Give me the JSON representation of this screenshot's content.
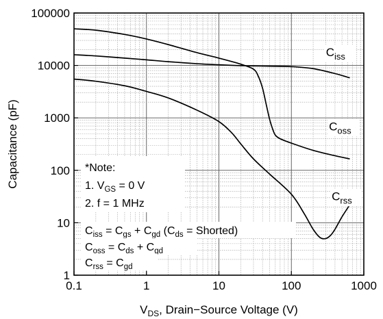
{
  "chart_data": {
    "type": "line",
    "xscale": "log",
    "yscale": "log",
    "xlim": [
      0.1,
      1000
    ],
    "ylim": [
      1,
      100000
    ],
    "grid": true,
    "ylabel": "Capacitance (pF)",
    "xlabel_parts": [
      "V",
      "DS",
      ", Drain−Source Voltage (V)"
    ],
    "x_ticks": [
      {
        "value": 0.1,
        "label": "0.1"
      },
      {
        "value": 1,
        "label": "1"
      },
      {
        "value": 10,
        "label": "10"
      },
      {
        "value": 100,
        "label": "100"
      },
      {
        "value": 1000,
        "label": "1000"
      }
    ],
    "y_ticks": [
      {
        "value": 1,
        "label": "1"
      },
      {
        "value": 10,
        "label": "10"
      },
      {
        "value": 100,
        "label": "100"
      },
      {
        "value": 1000,
        "label": "1000"
      },
      {
        "value": 10000,
        "label": "10000"
      },
      {
        "value": 100000,
        "label": "100000"
      }
    ],
    "series": [
      {
        "key": "ciss",
        "label_main": "C",
        "label_sub": "iss",
        "points": [
          [
            0.1,
            16000
          ],
          [
            0.2,
            15200
          ],
          [
            0.5,
            13800
          ],
          [
            1,
            12800
          ],
          [
            2,
            11800
          ],
          [
            5,
            10800
          ],
          [
            10,
            10300
          ],
          [
            20,
            9900
          ],
          [
            30,
            9800
          ],
          [
            50,
            9700
          ],
          [
            100,
            9500
          ],
          [
            200,
            8700
          ],
          [
            400,
            7000
          ],
          [
            640,
            5800
          ]
        ]
      },
      {
        "key": "coss",
        "label_main": "C",
        "label_sub": "oss",
        "points": [
          [
            0.1,
            50000
          ],
          [
            0.2,
            47000
          ],
          [
            0.5,
            39000
          ],
          [
            1,
            32000
          ],
          [
            2,
            25000
          ],
          [
            5,
            17500
          ],
          [
            10,
            13800
          ],
          [
            20,
            10600
          ],
          [
            30,
            8500
          ],
          [
            35,
            6200
          ],
          [
            40,
            3700
          ],
          [
            45,
            1800
          ],
          [
            50,
            950
          ],
          [
            55,
            620
          ],
          [
            60,
            470
          ],
          [
            70,
            400
          ],
          [
            100,
            330
          ],
          [
            200,
            240
          ],
          [
            400,
            190
          ],
          [
            640,
            165
          ]
        ]
      },
      {
        "key": "crss",
        "label_main": "C",
        "label_sub": "rss",
        "points": [
          [
            0.1,
            5500
          ],
          [
            0.2,
            5000
          ],
          [
            0.5,
            4100
          ],
          [
            1,
            3200
          ],
          [
            2,
            2400
          ],
          [
            5,
            1400
          ],
          [
            10,
            850
          ],
          [
            15,
            520
          ],
          [
            20,
            320
          ],
          [
            30,
            165
          ],
          [
            50,
            85
          ],
          [
            100,
            35
          ],
          [
            150,
            15
          ],
          [
            200,
            7.5
          ],
          [
            250,
            5.2
          ],
          [
            300,
            5.0
          ],
          [
            350,
            5.8
          ],
          [
            400,
            7.5
          ],
          [
            500,
            13
          ],
          [
            640,
            22
          ]
        ]
      }
    ],
    "series_label_positions": {
      "ciss": [
        300,
        15000
      ],
      "coss": [
        330,
        580
      ],
      "crss": [
        360,
        27
      ]
    },
    "note": {
      "title": "*Note:",
      "line1": {
        "prefix": "1. V",
        "sub": "GS",
        "suffix": " = 0 V"
      },
      "line2": "2. f = 1 MHz"
    },
    "formulas": [
      [
        {
          "t": "C"
        },
        {
          "s": "iss"
        },
        {
          "t": " = C"
        },
        {
          "s": "gs"
        },
        {
          "t": " + C"
        },
        {
          "s": "gd"
        },
        {
          "t": " (C"
        },
        {
          "s": "ds"
        },
        {
          "t": " = Shorted)"
        }
      ],
      [
        {
          "t": "C"
        },
        {
          "s": "oss"
        },
        {
          "t": " = C"
        },
        {
          "s": "ds"
        },
        {
          "t": " + C"
        },
        {
          "s": "gd"
        }
      ],
      [
        {
          "t": "C"
        },
        {
          "s": "rss"
        },
        {
          "t": " = C"
        },
        {
          "s": "gd"
        }
      ]
    ]
  }
}
